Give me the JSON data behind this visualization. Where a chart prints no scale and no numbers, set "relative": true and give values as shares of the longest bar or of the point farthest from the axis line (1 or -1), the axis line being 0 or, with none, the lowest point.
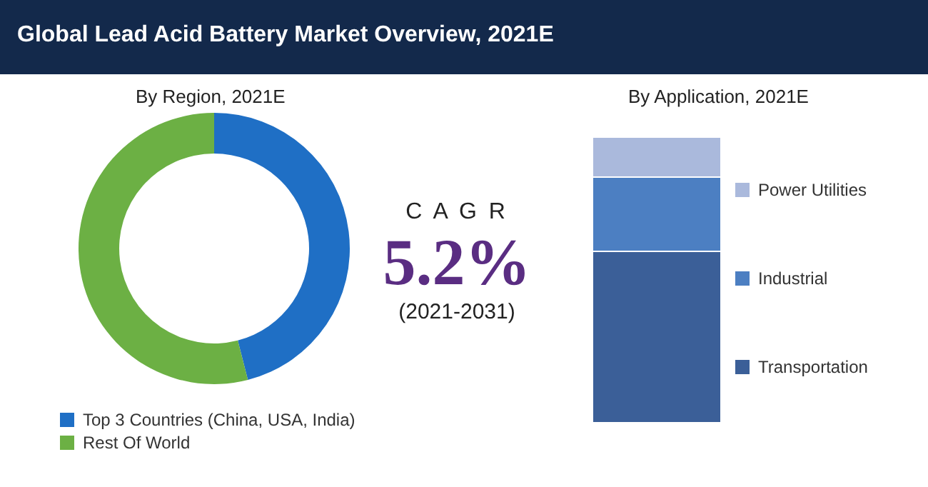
{
  "chart_data": [
    {
      "type": "donut",
      "title": "Global Lead Acid Battery Market Overview, 2021E",
      "subtitle": "By Region, 2021E",
      "categories": [
        "Top 3 Countries (China, USA, India)",
        "Rest Of World"
      ],
      "values": [
        46,
        54
      ],
      "colors": [
        "#1f6fc5",
        "#6cb044"
      ],
      "legend": "bottom left",
      "annotations": [
        "C A G R",
        "5.2%",
        "(2021-2031)"
      ]
    },
    {
      "type": "bar",
      "title": "By Application, 2021E",
      "stacked": true,
      "relative": true,
      "categories": [
        null
      ],
      "legend": "right",
      "series": [
        {
          "name": "Transportation",
          "color": "#3b5f98",
          "values": [
            0.6
          ]
        },
        {
          "name": "Industrial",
          "color": "#4c7fc2",
          "values": [
            0.26
          ]
        },
        {
          "name": "Power Utilities",
          "color": "#aab9dc",
          "values": [
            0.14
          ]
        }
      ]
    }
  ]
}
